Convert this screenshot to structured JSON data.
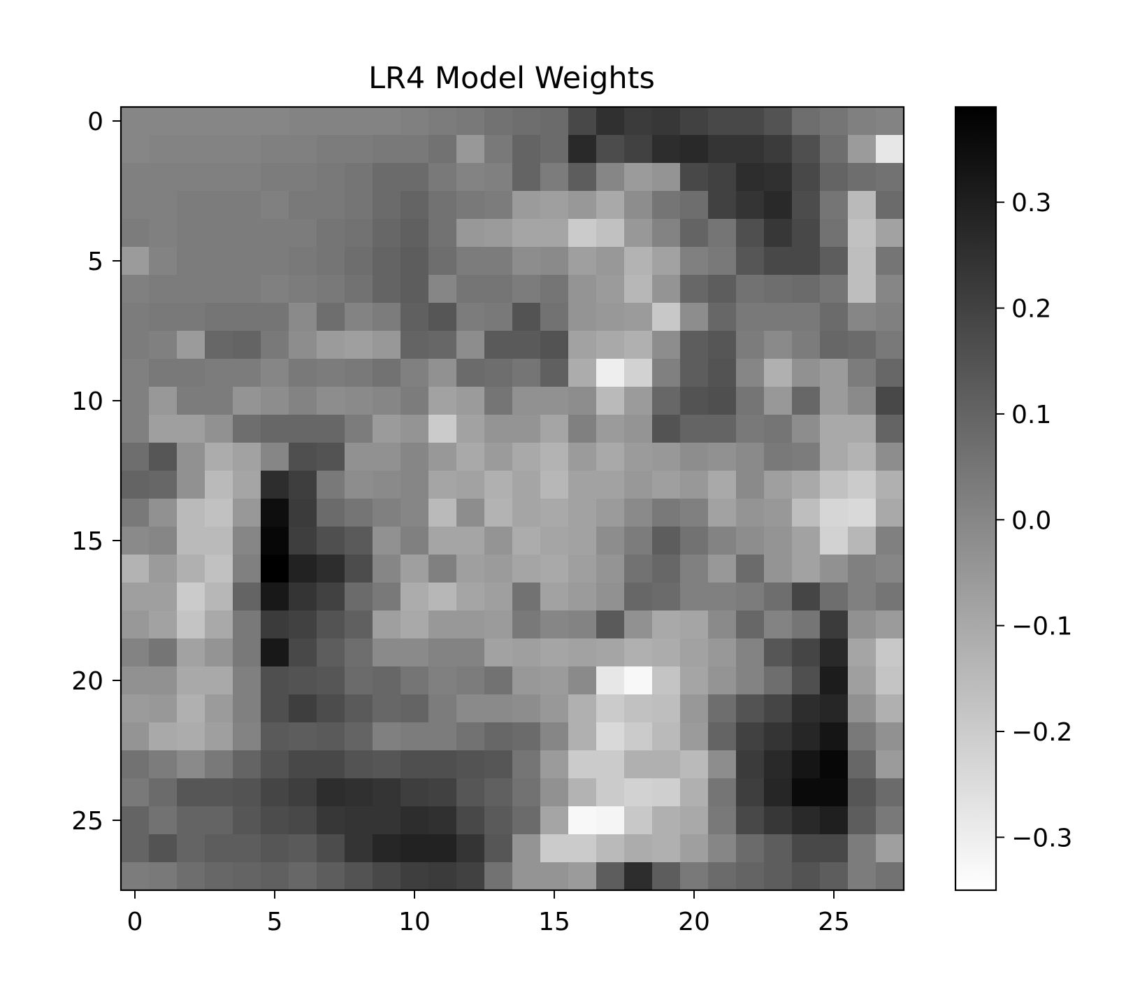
{
  "chart_data": {
    "type": "heatmap",
    "title": "LR4 Model Weights",
    "xlabel": "",
    "ylabel": "",
    "rows": 28,
    "cols": 28,
    "x_ticks": [
      0,
      5,
      10,
      15,
      20,
      25
    ],
    "y_ticks": [
      0,
      5,
      10,
      15,
      20,
      25
    ],
    "x_tick_labels": [
      "0",
      "5",
      "10",
      "15",
      "20",
      "25"
    ],
    "y_tick_labels": [
      "0",
      "5",
      "10",
      "15",
      "20",
      "25"
    ],
    "colormap": "gray_r",
    "color_low": "#ffffff",
    "color_high": "#000000",
    "vmin": -0.35,
    "vmax": 0.39,
    "colorbar_ticks": [
      0.3,
      0.2,
      0.1,
      0.0,
      -0.1,
      -0.2,
      -0.3
    ],
    "colorbar_tick_labels": [
      "0.3",
      "0.2",
      "0.1",
      "0.0",
      "−0.1",
      "−0.2",
      "−0.3"
    ],
    "grid": false,
    "values": [
      [
        0.0,
        0.0,
        0.0,
        0.0,
        0.0,
        0.0,
        0.01,
        0.01,
        0.01,
        0.01,
        0.02,
        0.03,
        0.04,
        0.06,
        0.07,
        0.08,
        0.18,
        0.25,
        0.22,
        0.23,
        0.2,
        0.18,
        0.18,
        0.15,
        0.07,
        0.05,
        0.02,
        0.01
      ],
      [
        0.0,
        0.01,
        0.01,
        0.01,
        0.01,
        0.02,
        0.02,
        0.03,
        0.03,
        0.04,
        0.04,
        0.06,
        -0.05,
        0.04,
        0.1,
        0.08,
        0.27,
        0.17,
        0.2,
        0.26,
        0.27,
        0.24,
        0.24,
        0.22,
        0.16,
        0.07,
        -0.06,
        -0.28
      ],
      [
        0.02,
        0.02,
        0.02,
        0.02,
        0.02,
        0.03,
        0.03,
        0.04,
        0.05,
        0.08,
        0.08,
        0.04,
        0.01,
        0.02,
        0.1,
        0.03,
        0.12,
        0.0,
        -0.06,
        -0.04,
        0.18,
        0.2,
        0.26,
        0.25,
        0.18,
        0.1,
        0.07,
        0.06
      ],
      [
        0.02,
        0.02,
        0.03,
        0.03,
        0.03,
        0.02,
        0.04,
        0.04,
        0.05,
        0.08,
        0.1,
        0.06,
        0.04,
        0.03,
        -0.06,
        -0.07,
        -0.05,
        -0.1,
        -0.02,
        0.05,
        0.07,
        0.2,
        0.24,
        0.27,
        0.17,
        0.05,
        -0.15,
        0.08
      ],
      [
        0.03,
        0.02,
        0.03,
        0.03,
        0.03,
        0.03,
        0.03,
        0.05,
        0.06,
        0.09,
        0.11,
        0.06,
        -0.05,
        -0.06,
        -0.09,
        -0.09,
        -0.2,
        -0.17,
        -0.05,
        0.01,
        0.1,
        0.05,
        0.16,
        0.23,
        0.18,
        0.06,
        -0.17,
        -0.08
      ],
      [
        -0.06,
        0.01,
        0.03,
        0.03,
        0.03,
        0.03,
        0.04,
        0.05,
        0.07,
        0.1,
        0.12,
        0.07,
        0.03,
        0.03,
        -0.02,
        -0.01,
        -0.07,
        -0.05,
        -0.13,
        -0.08,
        0.02,
        0.04,
        0.14,
        0.18,
        0.18,
        0.12,
        -0.16,
        0.05
      ],
      [
        0.02,
        0.03,
        0.03,
        0.03,
        0.03,
        0.02,
        0.03,
        0.04,
        0.06,
        0.1,
        0.12,
        0.0,
        0.05,
        0.05,
        0.03,
        0.05,
        -0.04,
        -0.06,
        -0.14,
        -0.04,
        0.09,
        0.12,
        0.06,
        0.07,
        0.08,
        0.05,
        -0.16,
        0.0
      ],
      [
        0.03,
        0.04,
        0.04,
        0.05,
        0.05,
        0.05,
        -0.01,
        0.07,
        0.01,
        0.03,
        0.11,
        0.14,
        0.03,
        0.04,
        0.15,
        0.06,
        -0.04,
        -0.05,
        -0.06,
        -0.19,
        -0.02,
        0.09,
        0.04,
        0.04,
        0.04,
        0.08,
        0.0,
        0.02
      ],
      [
        0.03,
        0.02,
        -0.06,
        0.09,
        0.1,
        0.04,
        -0.02,
        -0.06,
        -0.07,
        -0.05,
        0.1,
        0.09,
        -0.02,
        0.13,
        0.13,
        0.15,
        -0.08,
        -0.1,
        -0.12,
        -0.02,
        0.12,
        0.14,
        0.03,
        -0.01,
        0.03,
        0.09,
        0.08,
        0.04
      ],
      [
        0.02,
        0.04,
        0.04,
        0.03,
        0.03,
        0.0,
        0.04,
        0.03,
        0.04,
        0.06,
        0.02,
        -0.03,
        0.08,
        0.07,
        0.05,
        0.11,
        -0.11,
        -0.3,
        -0.22,
        0.02,
        0.12,
        0.15,
        0.0,
        -0.12,
        -0.03,
        -0.06,
        0.03,
        0.09
      ],
      [
        0.02,
        -0.05,
        0.03,
        0.03,
        -0.04,
        -0.02,
        0.01,
        -0.02,
        -0.01,
        0.0,
        0.03,
        -0.08,
        -0.06,
        0.05,
        -0.03,
        -0.03,
        -0.02,
        -0.15,
        -0.06,
        0.09,
        0.15,
        0.16,
        0.05,
        -0.05,
        0.09,
        -0.06,
        -0.01,
        0.18
      ],
      [
        0.02,
        -0.07,
        -0.07,
        -0.03,
        0.07,
        0.09,
        0.09,
        0.09,
        0.03,
        -0.06,
        -0.04,
        -0.2,
        -0.08,
        -0.04,
        -0.04,
        -0.09,
        0.02,
        -0.06,
        -0.04,
        0.15,
        0.1,
        0.1,
        0.04,
        0.05,
        -0.02,
        -0.1,
        -0.1,
        0.1
      ],
      [
        0.07,
        0.14,
        -0.03,
        -0.11,
        -0.08,
        0.0,
        0.16,
        0.15,
        -0.03,
        -0.03,
        0.0,
        -0.05,
        -0.1,
        -0.06,
        -0.1,
        -0.13,
        -0.06,
        -0.1,
        -0.06,
        -0.05,
        -0.02,
        -0.03,
        -0.01,
        0.04,
        0.03,
        -0.1,
        -0.13,
        -0.02
      ],
      [
        0.1,
        0.09,
        -0.03,
        -0.15,
        -0.09,
        0.26,
        0.21,
        0.04,
        -0.02,
        -0.01,
        0.0,
        -0.09,
        -0.08,
        -0.12,
        -0.09,
        -0.14,
        -0.08,
        -0.08,
        -0.05,
        -0.07,
        -0.05,
        -0.1,
        -0.01,
        -0.07,
        -0.1,
        -0.17,
        -0.2,
        -0.12
      ],
      [
        0.04,
        -0.03,
        -0.15,
        -0.17,
        -0.05,
        0.35,
        0.22,
        0.08,
        0.05,
        0.02,
        0.0,
        -0.15,
        -0.02,
        -0.13,
        -0.09,
        -0.1,
        -0.08,
        -0.06,
        -0.01,
        0.04,
        0.02,
        -0.08,
        -0.04,
        -0.05,
        -0.16,
        -0.23,
        -0.24,
        -0.1
      ],
      [
        -0.01,
        0.0,
        -0.15,
        -0.15,
        0.0,
        0.37,
        0.21,
        0.16,
        0.13,
        -0.03,
        0.02,
        -0.09,
        -0.09,
        -0.04,
        -0.11,
        -0.09,
        -0.08,
        -0.02,
        0.03,
        0.12,
        0.06,
        0.01,
        -0.02,
        -0.04,
        -0.08,
        -0.22,
        -0.14,
        0.02
      ],
      [
        -0.13,
        -0.06,
        -0.12,
        -0.17,
        0.02,
        0.39,
        0.29,
        0.26,
        0.17,
        0.0,
        -0.07,
        0.02,
        -0.07,
        -0.06,
        -0.09,
        -0.1,
        -0.07,
        -0.04,
        0.06,
        0.09,
        0.02,
        -0.05,
        0.08,
        -0.04,
        -0.08,
        -0.03,
        0.02,
        0.0
      ],
      [
        -0.07,
        -0.07,
        -0.2,
        -0.14,
        0.1,
        0.32,
        0.24,
        0.2,
        0.08,
        0.04,
        -0.11,
        -0.14,
        -0.09,
        -0.07,
        0.06,
        -0.08,
        -0.06,
        -0.03,
        0.09,
        0.08,
        0.02,
        0.02,
        0.03,
        0.07,
        0.19,
        0.07,
        0.02,
        0.05
      ],
      [
        -0.05,
        -0.08,
        -0.18,
        -0.1,
        0.04,
        0.22,
        0.2,
        0.15,
        0.11,
        -0.07,
        -0.1,
        -0.05,
        -0.05,
        -0.06,
        0.04,
        0.0,
        0.01,
        0.13,
        -0.03,
        -0.1,
        -0.09,
        -0.01,
        0.09,
        0.01,
        0.05,
        0.22,
        -0.03,
        -0.06
      ],
      [
        0.01,
        0.05,
        -0.08,
        -0.04,
        0.04,
        0.32,
        0.18,
        0.12,
        0.07,
        -0.01,
        -0.01,
        0.01,
        0.01,
        -0.08,
        -0.07,
        -0.09,
        -0.08,
        -0.09,
        -0.12,
        -0.11,
        -0.08,
        -0.05,
        0.01,
        0.14,
        0.19,
        0.27,
        -0.09,
        -0.19
      ],
      [
        -0.03,
        -0.03,
        -0.1,
        -0.1,
        0.02,
        0.16,
        0.15,
        0.14,
        0.08,
        0.09,
        0.05,
        0.02,
        0.03,
        0.06,
        -0.05,
        -0.06,
        -0.01,
        -0.28,
        -0.33,
        -0.18,
        -0.09,
        -0.04,
        0.01,
        0.07,
        0.16,
        0.31,
        -0.07,
        -0.18
      ],
      [
        -0.06,
        -0.05,
        -0.12,
        -0.06,
        0.02,
        0.16,
        0.21,
        0.17,
        0.13,
        0.09,
        0.1,
        0.03,
        -0.01,
        -0.01,
        -0.02,
        -0.05,
        -0.12,
        -0.2,
        -0.17,
        -0.16,
        -0.05,
        0.07,
        0.15,
        0.19,
        0.26,
        0.28,
        -0.03,
        -0.12
      ],
      [
        -0.04,
        -0.1,
        -0.11,
        -0.07,
        0.01,
        0.13,
        0.12,
        0.13,
        0.1,
        0.02,
        0.03,
        0.03,
        0.06,
        0.09,
        0.08,
        0.0,
        -0.12,
        -0.24,
        -0.2,
        -0.15,
        -0.06,
        0.1,
        0.2,
        0.24,
        0.28,
        0.33,
        0.04,
        -0.03
      ],
      [
        0.06,
        0.03,
        -0.01,
        0.04,
        0.1,
        0.15,
        0.18,
        0.18,
        0.15,
        0.14,
        0.16,
        0.16,
        0.15,
        0.14,
        0.05,
        -0.06,
        -0.2,
        -0.2,
        -0.12,
        -0.12,
        -0.15,
        -0.02,
        0.22,
        0.27,
        0.33,
        0.37,
        0.09,
        -0.06
      ],
      [
        0.04,
        0.08,
        0.14,
        0.14,
        0.15,
        0.19,
        0.21,
        0.26,
        0.25,
        0.24,
        0.21,
        0.2,
        0.14,
        0.11,
        0.06,
        -0.03,
        -0.13,
        -0.2,
        -0.22,
        -0.21,
        -0.12,
        0.05,
        0.21,
        0.28,
        0.36,
        0.36,
        0.14,
        0.08
      ],
      [
        0.1,
        0.06,
        0.1,
        0.1,
        0.14,
        0.17,
        0.18,
        0.23,
        0.24,
        0.24,
        0.26,
        0.25,
        0.18,
        0.13,
        0.08,
        -0.09,
        -0.33,
        -0.32,
        -0.19,
        -0.12,
        -0.1,
        0.04,
        0.18,
        0.23,
        0.27,
        0.3,
        0.12,
        0.04
      ],
      [
        0.1,
        0.15,
        0.1,
        0.12,
        0.12,
        0.14,
        0.13,
        0.17,
        0.24,
        0.28,
        0.29,
        0.29,
        0.24,
        0.14,
        -0.04,
        -0.2,
        -0.2,
        -0.15,
        -0.11,
        -0.12,
        -0.07,
        0.0,
        0.08,
        0.12,
        0.18,
        0.18,
        0.03,
        -0.07
      ],
      [
        0.03,
        0.04,
        0.07,
        0.09,
        0.1,
        0.11,
        0.09,
        0.12,
        0.15,
        0.18,
        0.21,
        0.22,
        0.2,
        0.06,
        -0.04,
        -0.04,
        -0.06,
        0.12,
        0.26,
        0.12,
        0.04,
        0.08,
        0.1,
        0.12,
        0.15,
        0.12,
        0.03,
        0.06
      ]
    ]
  }
}
